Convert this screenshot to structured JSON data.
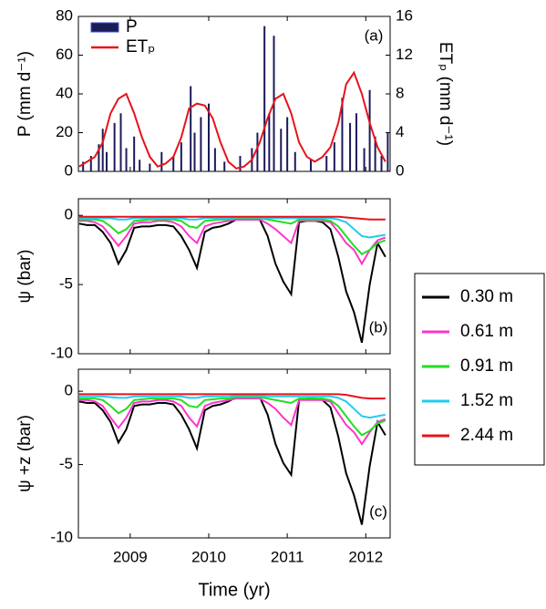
{
  "chart_data": [
    {
      "type": "combo",
      "annotation": "(a)",
      "ylabel": "P (mm d⁻¹)",
      "y2label": "ETₚ (mm d⁻¹)",
      "ylim": [
        0,
        80
      ],
      "yticks": [
        0,
        20,
        40,
        60,
        80
      ],
      "y2lim": [
        0,
        16
      ],
      "y2ticks": [
        0,
        4,
        8,
        12,
        16
      ],
      "legend": "upper-left",
      "series": [
        {
          "name": "P",
          "type": "bar",
          "color": "#1b1b5a",
          "x": [
            2008.9,
            2009.0,
            2009.1,
            2009.15,
            2009.2,
            2009.3,
            2009.38,
            2009.45,
            2009.55,
            2009.62,
            2009.75,
            2009.9,
            2010.05,
            2010.15,
            2010.27,
            2010.32,
            2010.4,
            2010.5,
            2010.58,
            2010.7,
            2010.9,
            2011.05,
            2011.12,
            2011.21,
            2011.27,
            2011.33,
            2011.42,
            2011.5,
            2011.6,
            2011.8,
            2012.0,
            2012.1,
            2012.2,
            2012.3,
            2012.38,
            2012.48,
            2012.55,
            2012.62,
            2012.7,
            2012.78
          ],
          "values": [
            5,
            8,
            14,
            22,
            10,
            25,
            30,
            12,
            18,
            6,
            4,
            10,
            8,
            15,
            44,
            20,
            28,
            35,
            12,
            5,
            8,
            12,
            20,
            75,
            30,
            70,
            22,
            28,
            10,
            6,
            8,
            15,
            38,
            25,
            30,
            12,
            42,
            18,
            8,
            20
          ]
        },
        {
          "name": "ETₚ",
          "type": "line",
          "axis": "y2",
          "color": "#e8121b",
          "x": [
            2008.85,
            2008.95,
            2009.05,
            2009.15,
            2009.25,
            2009.35,
            2009.45,
            2009.55,
            2009.65,
            2009.75,
            2009.85,
            2009.95,
            2010.05,
            2010.15,
            2010.25,
            2010.35,
            2010.45,
            2010.55,
            2010.65,
            2010.75,
            2010.85,
            2010.95,
            2011.05,
            2011.15,
            2011.25,
            2011.35,
            2011.45,
            2011.55,
            2011.65,
            2011.75,
            2011.85,
            2011.95,
            2012.05,
            2012.15,
            2012.25,
            2012.35,
            2012.45,
            2012.55,
            2012.65,
            2012.75
          ],
          "values": [
            0.5,
            1,
            1.5,
            3,
            6,
            7.5,
            8,
            6,
            3.5,
            1.5,
            0.5,
            0.8,
            1.5,
            3.5,
            6.5,
            7,
            6.8,
            5.5,
            3,
            1,
            0.3,
            0.5,
            1.2,
            3,
            5.5,
            7.5,
            8,
            6,
            3,
            1.5,
            1,
            1.5,
            2.5,
            5,
            9,
            10.2,
            8,
            5,
            2.5,
            1
          ]
        }
      ]
    },
    {
      "type": "line",
      "annotation": "(b)",
      "ylabel": "ψ  (bar)",
      "ylim": [
        -10,
        1.2
      ],
      "yticks": [
        -10,
        -5,
        0
      ],
      "legend": "outside-right",
      "x": [
        2008.85,
        2008.95,
        2009.05,
        2009.15,
        2009.25,
        2009.35,
        2009.45,
        2009.55,
        2009.65,
        2009.75,
        2009.85,
        2009.95,
        2010.05,
        2010.15,
        2010.25,
        2010.35,
        2010.45,
        2010.55,
        2010.65,
        2010.75,
        2010.85,
        2010.95,
        2011.05,
        2011.15,
        2011.25,
        2011.35,
        2011.45,
        2011.55,
        2011.65,
        2011.75,
        2011.85,
        2011.95,
        2012.05,
        2012.15,
        2012.25,
        2012.35,
        2012.45,
        2012.55,
        2012.65,
        2012.75
      ],
      "series": [
        {
          "name": "0.30 m",
          "color": "#000000",
          "values": [
            -0.6,
            -0.7,
            -0.7,
            -1.2,
            -2,
            -3.5,
            -2.5,
            -0.9,
            -0.8,
            -0.8,
            -0.7,
            -0.7,
            -0.8,
            -1.5,
            -2.5,
            -3.8,
            -1.2,
            -0.9,
            -0.8,
            -0.6,
            -0.3,
            -0.3,
            -0.3,
            -0.3,
            -1.5,
            -3.5,
            -4.8,
            -5.7,
            -0.5,
            -0.4,
            -0.4,
            -0.5,
            -1,
            -3,
            -5.5,
            -7,
            -9.2,
            -5,
            -2,
            -3
          ]
        },
        {
          "name": "0.61 m",
          "color": "#ff33cc",
          "values": [
            -0.4,
            -0.4,
            -0.5,
            -0.8,
            -1.5,
            -2.2,
            -1.5,
            -0.6,
            -0.5,
            -0.5,
            -0.4,
            -0.4,
            -0.5,
            -0.8,
            -1.5,
            -2,
            -0.8,
            -0.6,
            -0.5,
            -0.4,
            -0.3,
            -0.3,
            -0.3,
            -0.3,
            -0.6,
            -1,
            -1.5,
            -2,
            -0.4,
            -0.4,
            -0.4,
            -0.4,
            -0.5,
            -1.2,
            -2,
            -2.5,
            -3.5,
            -2.5,
            -1.8,
            -1.6
          ]
        },
        {
          "name": "0.91 m",
          "color": "#22dd22",
          "values": [
            -0.3,
            -0.3,
            -0.3,
            -0.4,
            -0.8,
            -1.3,
            -1,
            -0.4,
            -0.35,
            -0.3,
            -0.3,
            -0.3,
            -0.3,
            -0.4,
            -0.8,
            -0.9,
            -0.4,
            -0.35,
            -0.3,
            -0.3,
            -0.2,
            -0.2,
            -0.2,
            -0.2,
            -0.3,
            -0.4,
            -0.5,
            -0.6,
            -0.3,
            -0.3,
            -0.3,
            -0.3,
            -0.4,
            -0.8,
            -1.5,
            -2.2,
            -2.8,
            -2.5,
            -2,
            -1.8
          ]
        },
        {
          "name": "1.52 m",
          "color": "#22ccee",
          "values": [
            -0.2,
            -0.2,
            -0.2,
            -0.2,
            -0.2,
            -0.3,
            -0.3,
            -0.2,
            -0.2,
            -0.2,
            -0.2,
            -0.2,
            -0.2,
            -0.2,
            -0.3,
            -0.3,
            -0.2,
            -0.2,
            -0.2,
            -0.2,
            -0.15,
            -0.15,
            -0.15,
            -0.15,
            -0.2,
            -0.2,
            -0.2,
            -0.2,
            -0.2,
            -0.2,
            -0.2,
            -0.2,
            -0.2,
            -0.3,
            -0.5,
            -1,
            -1.5,
            -1.6,
            -1.5,
            -1.4
          ]
        },
        {
          "name": "2.44 m",
          "color": "#e8121b",
          "values": [
            -0.1,
            -0.1,
            -0.1,
            -0.1,
            -0.1,
            -0.1,
            -0.1,
            -0.1,
            -0.1,
            -0.1,
            -0.1,
            -0.1,
            -0.1,
            -0.1,
            -0.1,
            -0.1,
            -0.1,
            -0.1,
            -0.1,
            -0.1,
            -0.1,
            -0.1,
            -0.1,
            -0.1,
            -0.1,
            -0.1,
            -0.1,
            -0.1,
            -0.1,
            -0.1,
            -0.1,
            -0.1,
            -0.1,
            -0.1,
            -0.15,
            -0.2,
            -0.25,
            -0.3,
            -0.3,
            -0.3
          ]
        }
      ]
    },
    {
      "type": "line",
      "annotation": "(c)",
      "ylabel": "ψ +z  (bar)",
      "ylim": [
        -10,
        1.5
      ],
      "yticks": [
        -10,
        -5,
        0
      ],
      "xlabel": "Time (yr)",
      "xlim": [
        2008.84,
        2012.81
      ],
      "xticks": [
        {
          "value": 2009.5,
          "label": "2009"
        },
        {
          "value": 2010.5,
          "label": "2010"
        },
        {
          "value": 2011.5,
          "label": "2011"
        },
        {
          "value": 2012.5,
          "label": "2012"
        }
      ],
      "x": [
        2008.85,
        2008.95,
        2009.05,
        2009.15,
        2009.25,
        2009.35,
        2009.45,
        2009.55,
        2009.65,
        2009.75,
        2009.85,
        2009.95,
        2010.05,
        2010.15,
        2010.25,
        2010.35,
        2010.45,
        2010.55,
        2010.65,
        2010.75,
        2010.85,
        2010.95,
        2011.05,
        2011.15,
        2011.25,
        2011.35,
        2011.45,
        2011.55,
        2011.65,
        2011.75,
        2011.85,
        2011.95,
        2012.05,
        2012.15,
        2012.25,
        2012.35,
        2012.45,
        2012.55,
        2012.65,
        2012.75
      ],
      "series": [
        {
          "color": "#000000",
          "values": [
            -0.7,
            -0.8,
            -0.8,
            -1.3,
            -2.1,
            -3.5,
            -2.6,
            -1,
            -0.9,
            -0.9,
            -0.8,
            -0.8,
            -0.9,
            -1.6,
            -2.6,
            -3.9,
            -1.3,
            -1,
            -0.9,
            -0.7,
            -0.4,
            -0.4,
            -0.4,
            -0.4,
            -1.6,
            -3.6,
            -4.9,
            -5.7,
            -0.6,
            -0.5,
            -0.5,
            -0.6,
            -1.1,
            -3.1,
            -5.6,
            -7.1,
            -9.1,
            -5.1,
            -2.1,
            -3
          ]
        },
        {
          "color": "#ff33cc",
          "values": [
            -0.6,
            -0.6,
            -0.7,
            -1,
            -1.8,
            -2.5,
            -1.8,
            -0.8,
            -0.7,
            -0.7,
            -0.6,
            -0.6,
            -0.7,
            -1,
            -1.8,
            -2.4,
            -1,
            -0.8,
            -0.7,
            -0.6,
            -0.5,
            -0.5,
            -0.5,
            -0.5,
            -0.8,
            -1.2,
            -1.8,
            -2.3,
            -0.6,
            -0.6,
            -0.6,
            -0.6,
            -0.7,
            -1.5,
            -2.3,
            -2.8,
            -3.6,
            -2.8,
            -2.1,
            -1.9
          ]
        },
        {
          "color": "#22dd22",
          "values": [
            -0.5,
            -0.5,
            -0.5,
            -0.6,
            -1,
            -1.5,
            -1.2,
            -0.6,
            -0.55,
            -0.5,
            -0.5,
            -0.5,
            -0.5,
            -0.6,
            -1,
            -1.1,
            -0.6,
            -0.55,
            -0.5,
            -0.5,
            -0.4,
            -0.4,
            -0.4,
            -0.4,
            -0.5,
            -0.6,
            -0.7,
            -0.8,
            -0.5,
            -0.5,
            -0.5,
            -0.5,
            -0.6,
            -1,
            -1.7,
            -2.4,
            -3,
            -2.7,
            -2.2,
            -2
          ]
        },
        {
          "color": "#22ccee",
          "values": [
            -0.35,
            -0.35,
            -0.35,
            -0.35,
            -0.4,
            -0.45,
            -0.45,
            -0.35,
            -0.35,
            -0.35,
            -0.35,
            -0.35,
            -0.35,
            -0.35,
            -0.45,
            -0.45,
            -0.35,
            -0.35,
            -0.35,
            -0.35,
            -0.3,
            -0.3,
            -0.3,
            -0.3,
            -0.35,
            -0.35,
            -0.35,
            -0.35,
            -0.35,
            -0.35,
            -0.35,
            -0.35,
            -0.35,
            -0.45,
            -0.7,
            -1.2,
            -1.7,
            -1.8,
            -1.7,
            -1.6
          ]
        },
        {
          "color": "#e8121b",
          "values": [
            -0.2,
            -0.2,
            -0.2,
            -0.2,
            -0.2,
            -0.2,
            -0.2,
            -0.2,
            -0.2,
            -0.2,
            -0.2,
            -0.2,
            -0.2,
            -0.2,
            -0.2,
            -0.2,
            -0.2,
            -0.2,
            -0.2,
            -0.2,
            -0.2,
            -0.2,
            -0.2,
            -0.2,
            -0.2,
            -0.2,
            -0.2,
            -0.2,
            -0.2,
            -0.2,
            -0.2,
            -0.2,
            -0.2,
            -0.2,
            -0.25,
            -0.35,
            -0.45,
            -0.5,
            -0.5,
            -0.5
          ]
        }
      ]
    }
  ]
}
